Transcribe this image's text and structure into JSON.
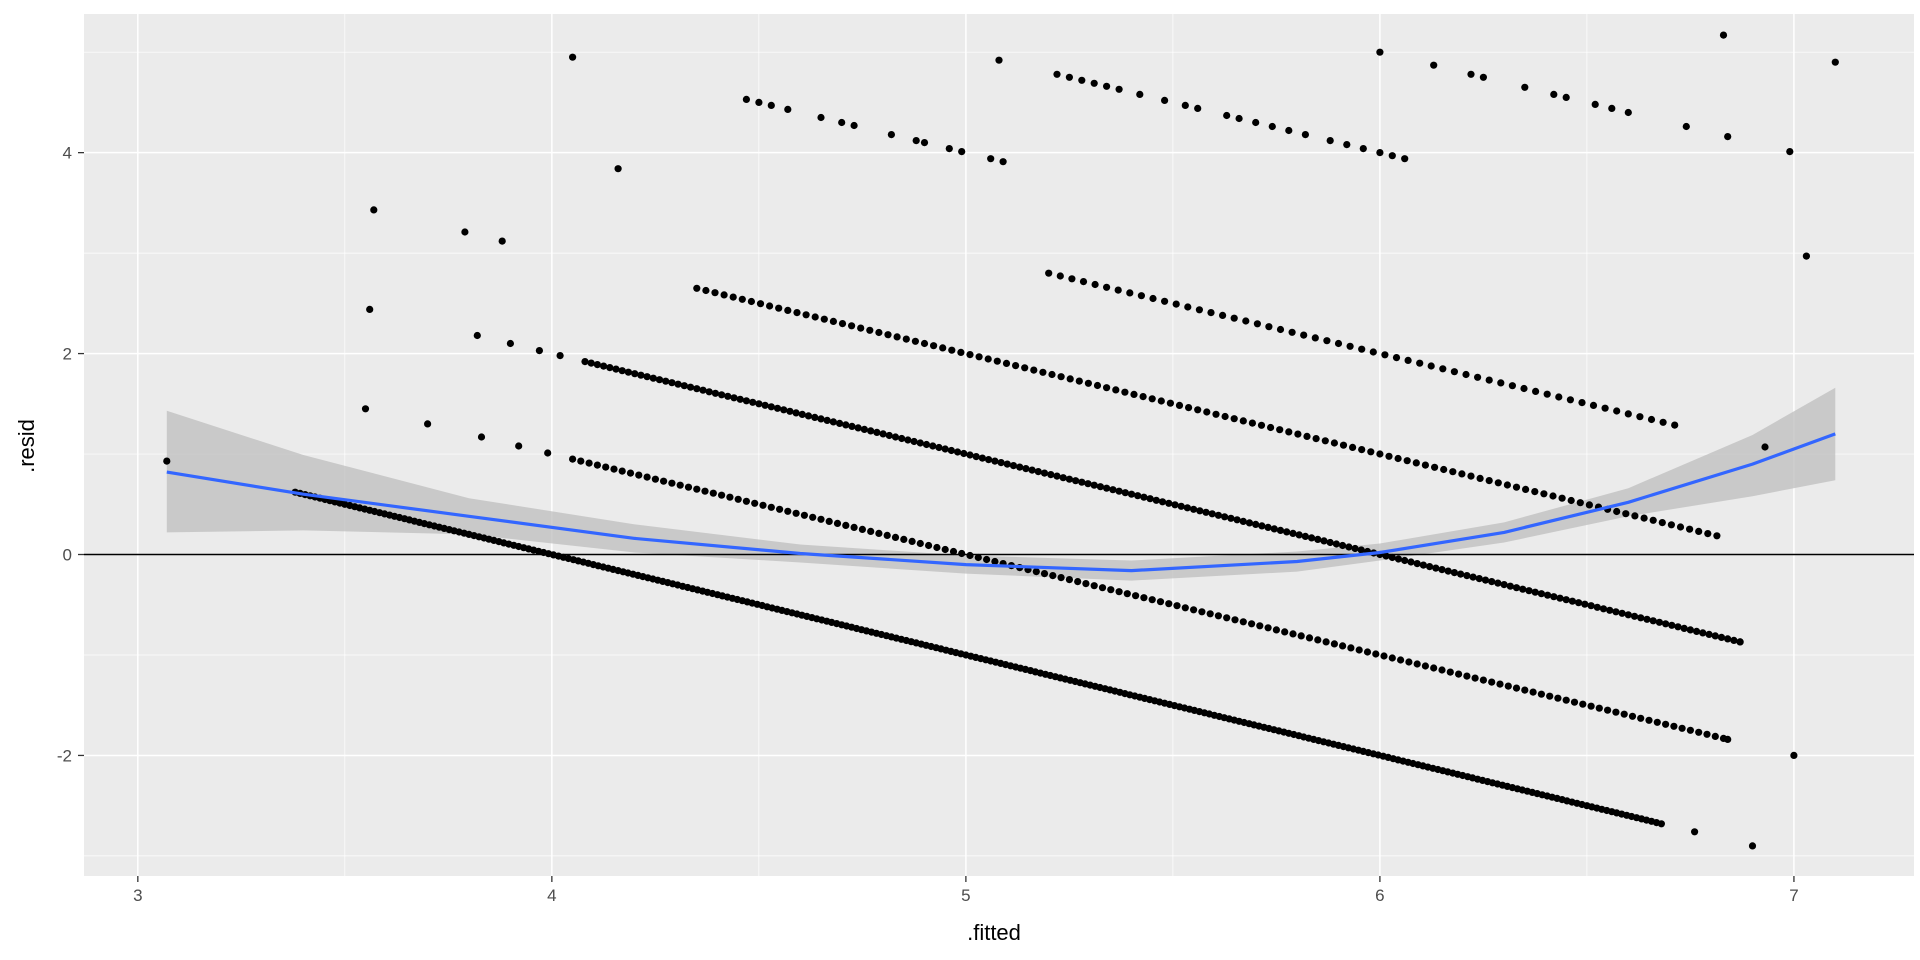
{
  "chart_data": {
    "type": "scatter",
    "title": "",
    "xlabel": ".fitted",
    "ylabel": ".resid",
    "xlim": [
      2.87,
      7.29
    ],
    "ylim": [
      -3.2,
      5.38
    ],
    "x_ticks": [
      3,
      4,
      5,
      6,
      7
    ],
    "y_ticks": [
      -2,
      0,
      2,
      4
    ],
    "x_tick_labels": [
      "3",
      "4",
      "5",
      "6",
      "7"
    ],
    "y_tick_labels": [
      "-2",
      "0",
      "2",
      "4"
    ],
    "grid": true,
    "legend": "none",
    "reference_line": {
      "y": 0,
      "color": "#000000"
    },
    "colors": {
      "panel": "#EBEBEB",
      "grid_major": "#FFFFFF",
      "points": "#000000",
      "smooth_line": "#3366FF",
      "confidence_band": "#BDBDBD"
    },
    "series": [
      {
        "type": "points",
        "segments": [
          {
            "k": 4,
            "x_from": 3.38,
            "x_to": 6.68,
            "step": 0.012
          },
          {
            "k": 5,
            "x_from": 4.05,
            "x_to": 6.84,
            "step": 0.02
          },
          {
            "k": 6,
            "x_from": 4.08,
            "x_to": 6.87,
            "step": 0.015
          },
          {
            "k": 7,
            "x_from": 4.35,
            "x_to": 6.82,
            "step": 0.022
          },
          {
            "k": 8,
            "x_from": 5.2,
            "x_to": 6.73,
            "step": 0.028
          }
        ],
        "points": [
          {
            "x": 3.07,
            "y": 0.93
          },
          {
            "x": 3.55,
            "y": 1.45
          },
          {
            "x": 3.56,
            "y": 2.44
          },
          {
            "x": 3.57,
            "y": 3.43
          },
          {
            "x": 3.7,
            "y": 1.3
          },
          {
            "x": 3.79,
            "y": 3.21
          },
          {
            "x": 3.83,
            "y": 1.17
          },
          {
            "x": 3.88,
            "y": 3.12
          },
          {
            "x": 3.92,
            "y": 1.08
          },
          {
            "x": 3.99,
            "y": 1.01
          },
          {
            "x": 3.82,
            "y": 2.18
          },
          {
            "x": 3.9,
            "y": 2.1
          },
          {
            "x": 3.97,
            "y": 2.03
          },
          {
            "x": 4.02,
            "y": 1.98
          },
          {
            "x": 4.05,
            "y": 4.95
          },
          {
            "x": 4.16,
            "y": 3.84
          },
          {
            "x": 4.47,
            "y": 4.53
          },
          {
            "x": 4.5,
            "y": 4.5
          },
          {
            "x": 4.53,
            "y": 4.47
          },
          {
            "x": 4.57,
            "y": 4.43
          },
          {
            "x": 4.65,
            "y": 4.35
          },
          {
            "x": 4.7,
            "y": 4.3
          },
          {
            "x": 4.73,
            "y": 4.27
          },
          {
            "x": 4.82,
            "y": 4.18
          },
          {
            "x": 4.88,
            "y": 4.12
          },
          {
            "x": 4.9,
            "y": 4.1
          },
          {
            "x": 4.96,
            "y": 4.04
          },
          {
            "x": 4.99,
            "y": 4.01
          },
          {
            "x": 5.06,
            "y": 3.94
          },
          {
            "x": 5.09,
            "y": 3.91
          },
          {
            "x": 5.08,
            "y": 4.92
          },
          {
            "x": 5.22,
            "y": 4.78
          },
          {
            "x": 5.25,
            "y": 4.75
          },
          {
            "x": 5.28,
            "y": 4.72
          },
          {
            "x": 5.31,
            "y": 4.69
          },
          {
            "x": 5.34,
            "y": 4.66
          },
          {
            "x": 5.37,
            "y": 4.63
          },
          {
            "x": 5.42,
            "y": 4.58
          },
          {
            "x": 5.48,
            "y": 4.52
          },
          {
            "x": 5.53,
            "y": 4.47
          },
          {
            "x": 5.56,
            "y": 4.44
          },
          {
            "x": 5.63,
            "y": 4.37
          },
          {
            "x": 5.66,
            "y": 4.34
          },
          {
            "x": 5.7,
            "y": 4.3
          },
          {
            "x": 5.74,
            "y": 4.26
          },
          {
            "x": 5.78,
            "y": 4.22
          },
          {
            "x": 5.82,
            "y": 4.18
          },
          {
            "x": 5.88,
            "y": 4.12
          },
          {
            "x": 5.92,
            "y": 4.08
          },
          {
            "x": 5.96,
            "y": 4.04
          },
          {
            "x": 6.0,
            "y": 4.0
          },
          {
            "x": 6.03,
            "y": 3.97
          },
          {
            "x": 6.06,
            "y": 3.94
          },
          {
            "x": 6.0,
            "y": 5.0
          },
          {
            "x": 6.13,
            "y": 4.87
          },
          {
            "x": 6.22,
            "y": 4.78
          },
          {
            "x": 6.25,
            "y": 4.75
          },
          {
            "x": 6.35,
            "y": 4.65
          },
          {
            "x": 6.42,
            "y": 4.58
          },
          {
            "x": 6.45,
            "y": 4.55
          },
          {
            "x": 6.52,
            "y": 4.48
          },
          {
            "x": 6.56,
            "y": 4.44
          },
          {
            "x": 6.6,
            "y": 4.4
          },
          {
            "x": 6.74,
            "y": 4.26
          },
          {
            "x": 6.84,
            "y": 4.16
          },
          {
            "x": 6.83,
            "y": 5.17
          },
          {
            "x": 7.1,
            "y": 4.9
          },
          {
            "x": 7.03,
            "y": 2.97
          },
          {
            "x": 6.99,
            "y": 4.01
          },
          {
            "x": 6.76,
            "y": -2.76
          },
          {
            "x": 6.84,
            "y": -1.84
          },
          {
            "x": 6.87,
            "y": -0.87
          },
          {
            "x": 6.9,
            "y": -2.9
          },
          {
            "x": 6.93,
            "y": 1.07
          },
          {
            "x": 7.0,
            "y": -2.0
          }
        ]
      },
      {
        "type": "smooth",
        "x": [
          3.07,
          3.4,
          3.8,
          4.2,
          4.6,
          5.0,
          5.4,
          5.8,
          6.0,
          6.3,
          6.6,
          6.9,
          7.1
        ],
        "y": [
          0.82,
          0.6,
          0.38,
          0.16,
          0.01,
          -0.1,
          -0.16,
          -0.07,
          0.02,
          0.22,
          0.52,
          0.9,
          1.2
        ],
        "lower": [
          0.22,
          0.24,
          0.2,
          0.02,
          -0.08,
          -0.19,
          -0.26,
          -0.17,
          -0.06,
          0.12,
          0.38,
          0.58,
          0.74
        ],
        "upper": [
          1.43,
          0.99,
          0.56,
          0.3,
          0.1,
          -0.01,
          -0.06,
          0.03,
          0.11,
          0.32,
          0.66,
          1.19,
          1.66
        ]
      }
    ]
  }
}
